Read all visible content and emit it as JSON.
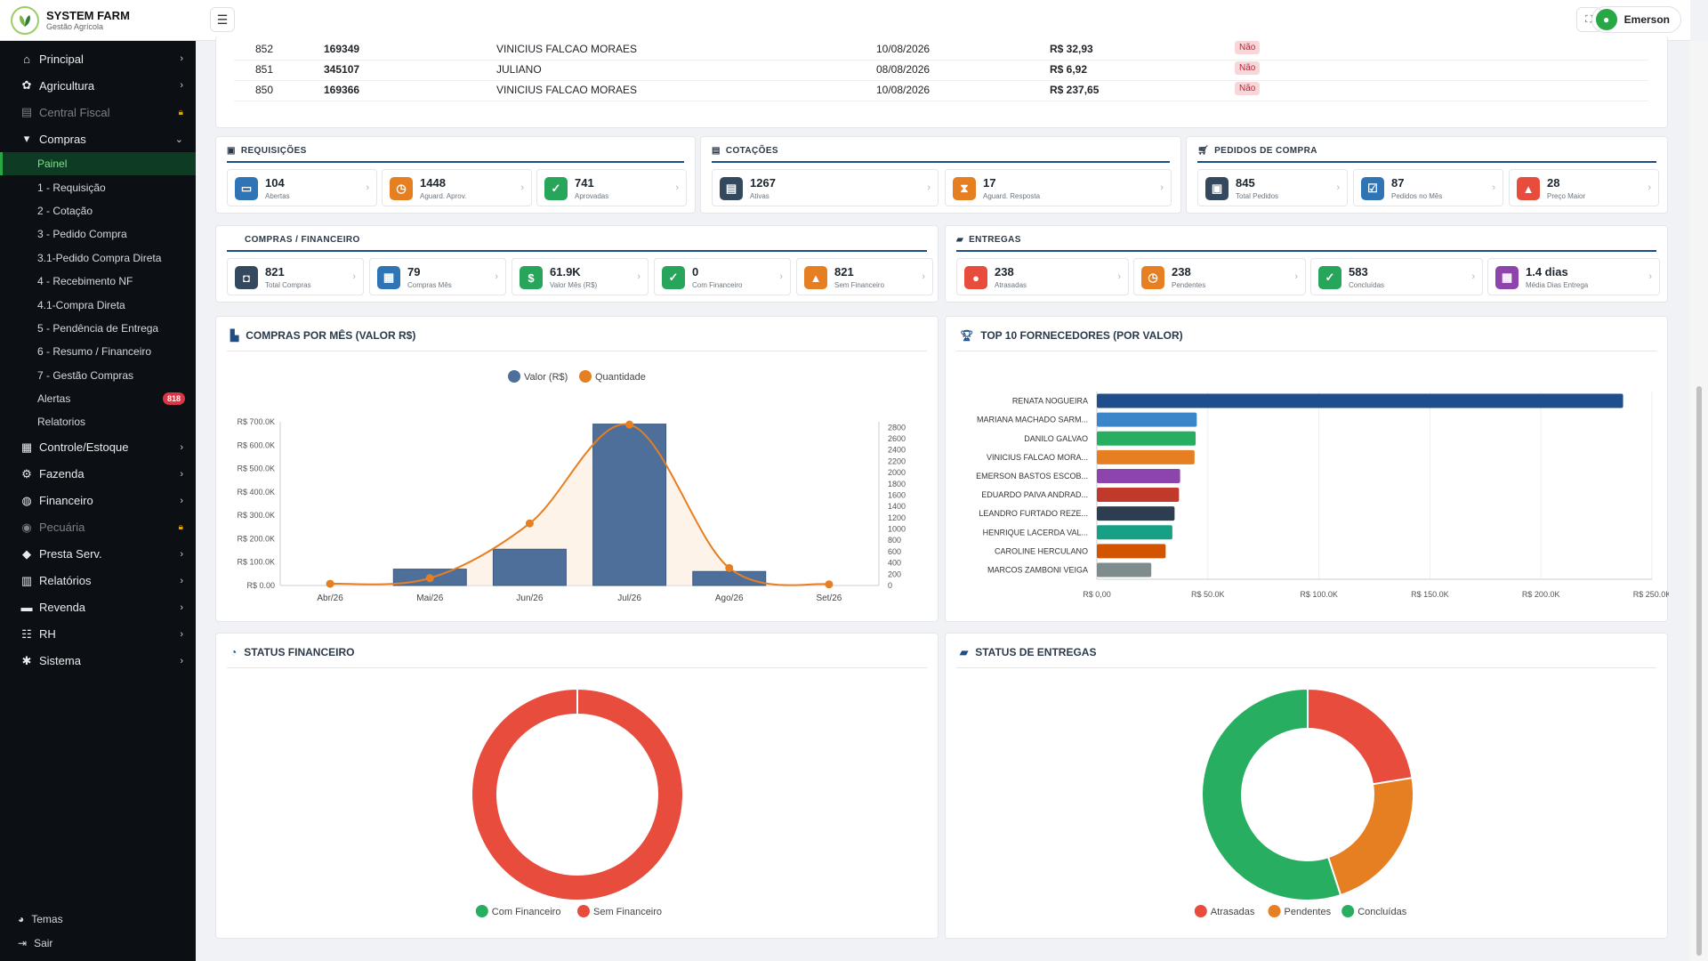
{
  "brand": {
    "title": "SYSTEM FARM",
    "subtitle": "Gestão Agrícola"
  },
  "sidebar": {
    "items": [
      {
        "label": "Principal",
        "icon": "home-icon"
      },
      {
        "label": "Agricultura",
        "icon": "plant-icon"
      },
      {
        "label": "Central Fiscal",
        "icon": "file-icon",
        "locked": true
      },
      {
        "label": "Compras",
        "icon": "cart-icon",
        "expanded": true
      }
    ],
    "compras_sub": [
      {
        "label": "Painel",
        "active": true
      },
      {
        "label": "1 - Requisição"
      },
      {
        "label": "2 - Cotação"
      },
      {
        "label": "3 - Pedido Compra"
      },
      {
        "label": "3.1-Pedido Compra Direta"
      },
      {
        "label": "4 - Recebimento NF"
      },
      {
        "label": "4.1-Compra Direta"
      },
      {
        "label": "5 - Pendência de Entrega"
      },
      {
        "label": "6 - Resumo / Financeiro"
      },
      {
        "label": "7 - Gestão Compras"
      },
      {
        "label": "Alertas",
        "badge": "818"
      },
      {
        "label": "Relatorios"
      }
    ],
    "items_after": [
      {
        "label": "Controle/Estoque",
        "icon": "boxes-icon"
      },
      {
        "label": "Fazenda",
        "icon": "tractor-icon"
      },
      {
        "label": "Financeiro",
        "icon": "money-icon"
      },
      {
        "label": "Pecuária",
        "icon": "cow-icon",
        "locked": true
      },
      {
        "label": "Presta Serv.",
        "icon": "handshake-icon"
      },
      {
        "label": "Relatórios",
        "icon": "report-icon"
      },
      {
        "label": "Revenda",
        "icon": "store-icon"
      },
      {
        "label": "RH",
        "icon": "people-icon"
      },
      {
        "label": "Sistema",
        "icon": "gear-icon"
      }
    ],
    "footer": {
      "themes": "Temas",
      "exit": "Sair"
    }
  },
  "topbar": {
    "user": "Emerson"
  },
  "recent_table": {
    "rows": [
      {
        "id": "852",
        "code": "169349",
        "supplier": "VINICIUS FALCAO MORAES",
        "date": "10/08/2026",
        "value": "R$ 32,93",
        "status": "Não"
      },
      {
        "id": "851",
        "code": "345107",
        "supplier": "JULIANO",
        "date": "08/08/2026",
        "value": "R$ 6,92",
        "status": "Não"
      },
      {
        "id": "850",
        "code": "169366",
        "supplier": "VINICIUS FALCAO MORAES",
        "date": "10/08/2026",
        "value": "R$ 237,65",
        "status": "Não"
      }
    ]
  },
  "requisicoes": {
    "title": "REQUISIÇÕES",
    "kpis": [
      {
        "value": "104",
        "label": "Abertas",
        "color": "#2f75b5",
        "icon": "folder-icon"
      },
      {
        "value": "1448",
        "label": "Aguard. Aprov.",
        "color": "#e67e22",
        "icon": "clock-icon"
      },
      {
        "value": "741",
        "label": "Aprovadas",
        "color": "#27a55a",
        "icon": "check-circle-icon"
      }
    ]
  },
  "cotacoes": {
    "title": "COTAÇÕES",
    "kpis": [
      {
        "value": "1267",
        "label": "Ativas",
        "color": "#34495e",
        "icon": "doc-icon"
      },
      {
        "value": "17",
        "label": "Aguard. Resposta",
        "color": "#e67e22",
        "icon": "hourglass-icon"
      }
    ]
  },
  "pedidos": {
    "title": "PEDIDOS DE COMPRA",
    "kpis": [
      {
        "value": "845",
        "label": "Total Pedidos",
        "color": "#34495e",
        "icon": "box-icon"
      },
      {
        "value": "87",
        "label": "Pedidos no Mês",
        "color": "#2f75b5",
        "icon": "calendar-check-icon"
      },
      {
        "value": "28",
        "label": "Preço Maior",
        "color": "#e74c3c",
        "icon": "warning-icon"
      }
    ]
  },
  "compras_fin": {
    "title": "COMPRAS / FINANCEIRO",
    "kpis": [
      {
        "value": "821",
        "label": "Total Compras",
        "color": "#34495e",
        "icon": "bag-icon"
      },
      {
        "value": "79",
        "label": "Compras Mês",
        "color": "#2f75b5",
        "icon": "calendar-icon"
      },
      {
        "value": "61.9K",
        "label": "Valor Mês (R$)",
        "color": "#27a55a",
        "icon": "dollar-icon"
      },
      {
        "value": "0",
        "label": "Com Financeiro",
        "color": "#27a55a",
        "icon": "check-icon"
      },
      {
        "value": "821",
        "label": "Sem Financeiro",
        "color": "#e67e22",
        "icon": "warning-icon"
      }
    ]
  },
  "entregas": {
    "title": "ENTREGAS",
    "kpis": [
      {
        "value": "238",
        "label": "Atrasadas",
        "color": "#e74c3c",
        "icon": "alert-circle-icon"
      },
      {
        "value": "238",
        "label": "Pendentes",
        "color": "#e67e22",
        "icon": "clock-icon"
      },
      {
        "value": "583",
        "label": "Concluídas",
        "color": "#27a55a",
        "icon": "check-circle-icon"
      },
      {
        "value": "1.4 dias",
        "label": "Média Dias Entrega",
        "color": "#8e44ad",
        "icon": "calendar-icon"
      }
    ]
  },
  "charts": {
    "compras_mes_title": "COMPRAS POR MÊS (VALOR R$)",
    "top10_title": "TOP 10 FORNECEDORES (POR VALOR)",
    "status_fin_title": "STATUS FINANCEIRO",
    "status_ent_title": "STATUS DE ENTREGAS"
  },
  "chart_data": [
    {
      "type": "bar",
      "name": "COMPRAS POR MÊS (VALOR R$)",
      "categories": [
        "Abr/26",
        "Mai/26",
        "Jun/26",
        "Jul/26",
        "Ago/26",
        "Set/26"
      ],
      "series": [
        {
          "name": "Valor (R$)",
          "type": "bar",
          "axis": "left",
          "color": "#4e6f9a",
          "values": [
            0,
            70000,
            155000,
            690000,
            60000,
            0
          ]
        },
        {
          "name": "Quantidade",
          "type": "line",
          "axis": "right",
          "color": "#e67e22",
          "values": [
            30,
            130,
            1100,
            2850,
            310,
            20
          ]
        }
      ],
      "y_left": {
        "ticks": [
          "R$ 0.00",
          "R$ 100.0K",
          "R$ 200.0K",
          "R$ 300.0K",
          "R$ 400.0K",
          "R$ 500.0K",
          "R$ 600.0K",
          "R$ 700.0K"
        ],
        "max": 700000
      },
      "y_right": {
        "ticks": [
          "0",
          "200",
          "400",
          "600",
          "800",
          "1000",
          "1200",
          "1400",
          "1600",
          "1800",
          "2000",
          "2200",
          "2400",
          "2600",
          "2800"
        ],
        "max": 2900
      },
      "legend": "top"
    },
    {
      "type": "bar",
      "orientation": "horizontal",
      "name": "TOP 10 FORNECEDORES (POR VALOR)",
      "categories": [
        "RENATA NOGUEIRA",
        "MARIANA MACHADO SARM...",
        "DANILO GALVAO",
        "VINICIUS FALCAO MORA...",
        "EMERSON BASTOS ESCOB...",
        "EDUARDO PAIVA ANDRAD...",
        "LEANDRO FURTADO REZE...",
        "HENRIQUE LACERDA VAL...",
        "CAROLINE HERCULANO",
        "MARCOS ZAMBONI VEIGA"
      ],
      "values": [
        237000,
        45000,
        44500,
        44000,
        37500,
        37000,
        35000,
        34000,
        31000,
        24500
      ],
      "colors": [
        "#1f4e8c",
        "#3a86c8",
        "#27ae60",
        "#e67e22",
        "#8e44ad",
        "#c0392b",
        "#2c3e50",
        "#16a085",
        "#d35400",
        "#7f8c8d"
      ],
      "x_ticks": [
        "R$ 0,00",
        "R$ 50.0K",
        "R$ 100.0K",
        "R$ 150.0K",
        "R$ 200.0K",
        "R$ 250.0K"
      ],
      "xlim": [
        0,
        250000
      ]
    },
    {
      "type": "pie",
      "name": "STATUS FINANCEIRO",
      "labels": [
        "Com Financeiro",
        "Sem Financeiro"
      ],
      "values": [
        0,
        821
      ],
      "colors": [
        "#27ae60",
        "#e74c3c"
      ]
    },
    {
      "type": "pie",
      "name": "STATUS DE ENTREGAS",
      "labels": [
        "Atrasadas",
        "Pendentes",
        "Concluídas"
      ],
      "values": [
        238,
        238,
        583
      ],
      "colors": [
        "#e74c3c",
        "#e67e22",
        "#27ae60"
      ]
    }
  ]
}
